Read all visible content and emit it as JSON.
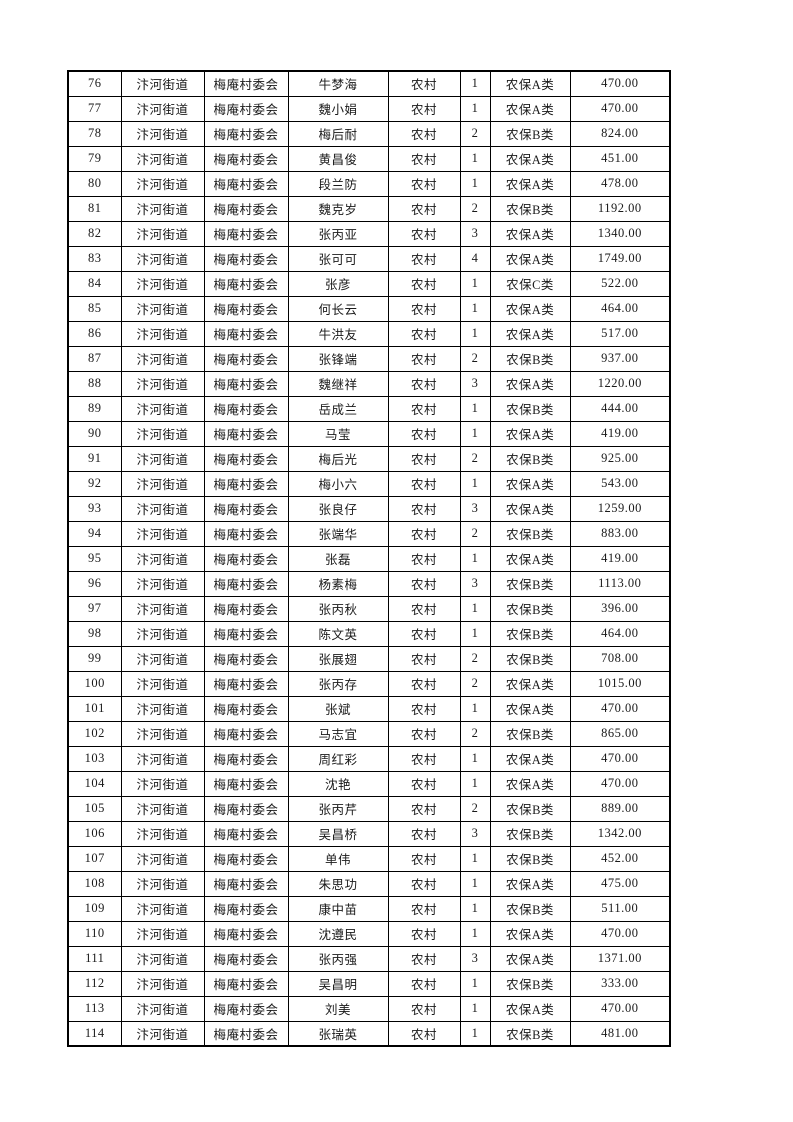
{
  "table": {
    "column_keys": [
      "seq",
      "street",
      "village",
      "name",
      "residence",
      "count",
      "category",
      "amount"
    ],
    "rows": [
      [
        "76",
        "汴河街道",
        "梅庵村委会",
        "牛梦海",
        "农村",
        "1",
        "农保A类",
        "470.00"
      ],
      [
        "77",
        "汴河街道",
        "梅庵村委会",
        "魏小娟",
        "农村",
        "1",
        "农保A类",
        "470.00"
      ],
      [
        "78",
        "汴河街道",
        "梅庵村委会",
        "梅后耐",
        "农村",
        "2",
        "农保B类",
        "824.00"
      ],
      [
        "79",
        "汴河街道",
        "梅庵村委会",
        "黄昌俊",
        "农村",
        "1",
        "农保A类",
        "451.00"
      ],
      [
        "80",
        "汴河街道",
        "梅庵村委会",
        "段兰防",
        "农村",
        "1",
        "农保A类",
        "478.00"
      ],
      [
        "81",
        "汴河街道",
        "梅庵村委会",
        "魏克岁",
        "农村",
        "2",
        "农保B类",
        "1192.00"
      ],
      [
        "82",
        "汴河街道",
        "梅庵村委会",
        "张丙亚",
        "农村",
        "3",
        "农保A类",
        "1340.00"
      ],
      [
        "83",
        "汴河街道",
        "梅庵村委会",
        "张可可",
        "农村",
        "4",
        "农保A类",
        "1749.00"
      ],
      [
        "84",
        "汴河街道",
        "梅庵村委会",
        "张彦",
        "农村",
        "1",
        "农保C类",
        "522.00"
      ],
      [
        "85",
        "汴河街道",
        "梅庵村委会",
        "何长云",
        "农村",
        "1",
        "农保A类",
        "464.00"
      ],
      [
        "86",
        "汴河街道",
        "梅庵村委会",
        "牛洪友",
        "农村",
        "1",
        "农保A类",
        "517.00"
      ],
      [
        "87",
        "汴河街道",
        "梅庵村委会",
        "张锋端",
        "农村",
        "2",
        "农保B类",
        "937.00"
      ],
      [
        "88",
        "汴河街道",
        "梅庵村委会",
        "魏继祥",
        "农村",
        "3",
        "农保A类",
        "1220.00"
      ],
      [
        "89",
        "汴河街道",
        "梅庵村委会",
        "岳成兰",
        "农村",
        "1",
        "农保B类",
        "444.00"
      ],
      [
        "90",
        "汴河街道",
        "梅庵村委会",
        "马莹",
        "农村",
        "1",
        "农保A类",
        "419.00"
      ],
      [
        "91",
        "汴河街道",
        "梅庵村委会",
        "梅后光",
        "农村",
        "2",
        "农保B类",
        "925.00"
      ],
      [
        "92",
        "汴河街道",
        "梅庵村委会",
        "梅小六",
        "农村",
        "1",
        "农保A类",
        "543.00"
      ],
      [
        "93",
        "汴河街道",
        "梅庵村委会",
        "张良仔",
        "农村",
        "3",
        "农保A类",
        "1259.00"
      ],
      [
        "94",
        "汴河街道",
        "梅庵村委会",
        "张端华",
        "农村",
        "2",
        "农保B类",
        "883.00"
      ],
      [
        "95",
        "汴河街道",
        "梅庵村委会",
        "张磊",
        "农村",
        "1",
        "农保A类",
        "419.00"
      ],
      [
        "96",
        "汴河街道",
        "梅庵村委会",
        "杨素梅",
        "农村",
        "3",
        "农保B类",
        "1113.00"
      ],
      [
        "97",
        "汴河街道",
        "梅庵村委会",
        "张丙秋",
        "农村",
        "1",
        "农保B类",
        "396.00"
      ],
      [
        "98",
        "汴河街道",
        "梅庵村委会",
        "陈文英",
        "农村",
        "1",
        "农保B类",
        "464.00"
      ],
      [
        "99",
        "汴河街道",
        "梅庵村委会",
        "张展翅",
        "农村",
        "2",
        "农保B类",
        "708.00"
      ],
      [
        "100",
        "汴河街道",
        "梅庵村委会",
        "张丙存",
        "农村",
        "2",
        "农保A类",
        "1015.00"
      ],
      [
        "101",
        "汴河街道",
        "梅庵村委会",
        "张斌",
        "农村",
        "1",
        "农保A类",
        "470.00"
      ],
      [
        "102",
        "汴河街道",
        "梅庵村委会",
        "马志宜",
        "农村",
        "2",
        "农保B类",
        "865.00"
      ],
      [
        "103",
        "汴河街道",
        "梅庵村委会",
        "周红彩",
        "农村",
        "1",
        "农保A类",
        "470.00"
      ],
      [
        "104",
        "汴河街道",
        "梅庵村委会",
        "沈艳",
        "农村",
        "1",
        "农保A类",
        "470.00"
      ],
      [
        "105",
        "汴河街道",
        "梅庵村委会",
        "张丙芹",
        "农村",
        "2",
        "农保B类",
        "889.00"
      ],
      [
        "106",
        "汴河街道",
        "梅庵村委会",
        "吴昌桥",
        "农村",
        "3",
        "农保B类",
        "1342.00"
      ],
      [
        "107",
        "汴河街道",
        "梅庵村委会",
        "单伟",
        "农村",
        "1",
        "农保B类",
        "452.00"
      ],
      [
        "108",
        "汴河街道",
        "梅庵村委会",
        "朱思功",
        "农村",
        "1",
        "农保A类",
        "475.00"
      ],
      [
        "109",
        "汴河街道",
        "梅庵村委会",
        "康中苗",
        "农村",
        "1",
        "农保B类",
        "511.00"
      ],
      [
        "110",
        "汴河街道",
        "梅庵村委会",
        "沈遵民",
        "农村",
        "1",
        "农保A类",
        "470.00"
      ],
      [
        "111",
        "汴河街道",
        "梅庵村委会",
        "张丙强",
        "农村",
        "3",
        "农保A类",
        "1371.00"
      ],
      [
        "112",
        "汴河街道",
        "梅庵村委会",
        "吴昌明",
        "农村",
        "1",
        "农保B类",
        "333.00"
      ],
      [
        "113",
        "汴河街道",
        "梅庵村委会",
        "刘美",
        "农村",
        "1",
        "农保A类",
        "470.00"
      ],
      [
        "114",
        "汴河街道",
        "梅庵村委会",
        "张瑞英",
        "农村",
        "1",
        "农保B类",
        "481.00"
      ]
    ]
  }
}
